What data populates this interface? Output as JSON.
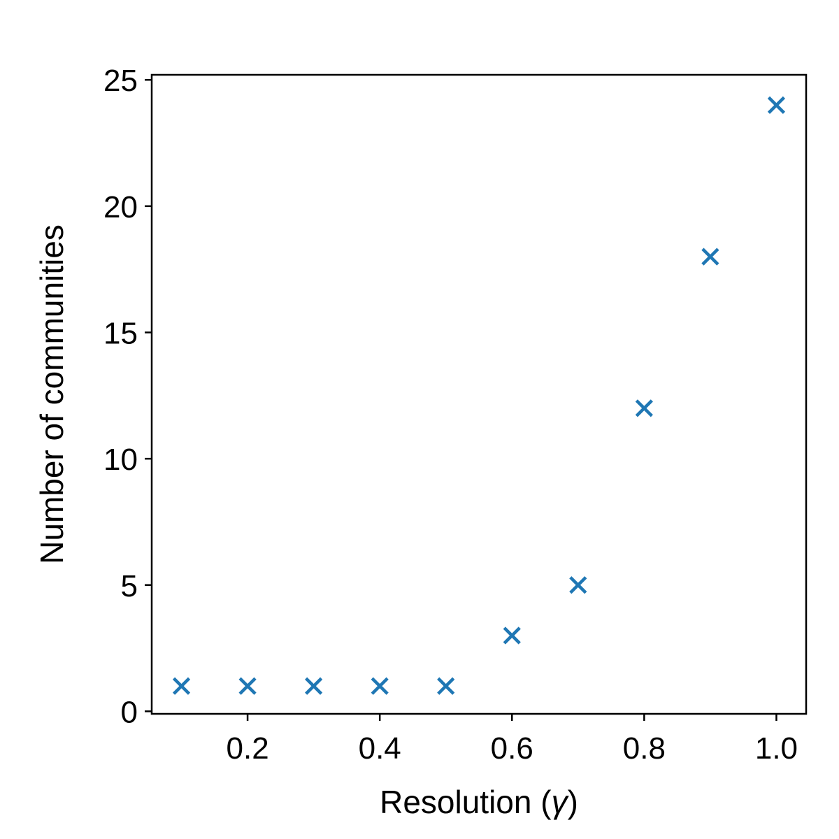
{
  "chart_data": {
    "type": "scatter",
    "title": "",
    "xlabel_prefix": "Resolution (",
    "xlabel_symbol": "γ",
    "xlabel_suffix": ")",
    "ylabel": "Number of communities",
    "x": [
      0.1,
      0.2,
      0.3,
      0.4,
      0.5,
      0.6,
      0.7,
      0.8,
      0.9,
      1.0
    ],
    "y": [
      1,
      1,
      1,
      1,
      1,
      3,
      5,
      12,
      18,
      24
    ],
    "xlim": [
      0.055,
      1.045
    ],
    "ylim": [
      -0.1,
      25.2
    ],
    "xticks": [
      0.2,
      0.4,
      0.6,
      0.8,
      1.0
    ],
    "xtick_labels": [
      "0.2",
      "0.4",
      "0.6",
      "0.8",
      "1.0"
    ],
    "yticks": [
      0,
      5,
      10,
      15,
      20,
      25
    ],
    "ytick_labels": [
      "0",
      "5",
      "10",
      "15",
      "20",
      "25"
    ],
    "marker": "x",
    "marker_color": "#1f77b4",
    "grid": false,
    "legend": "none"
  }
}
